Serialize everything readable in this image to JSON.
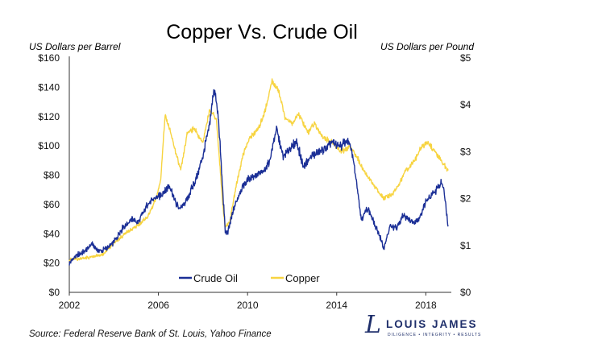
{
  "chart_data": {
    "type": "line",
    "title": "Copper Vs. Crude Oil",
    "left_axis_label": "US Dollars per Barrel",
    "right_axis_label": "US Dollars per Pound",
    "x_ticks": [
      "2002",
      "2006",
      "2010",
      "2014",
      "2018"
    ],
    "x_tick_values": [
      2002,
      2006,
      2010,
      2014,
      2018
    ],
    "xlim": [
      2002,
      2019
    ],
    "left_ticks": [
      "$0",
      "$20",
      "$40",
      "$60",
      "$80",
      "$100",
      "$120",
      "$140",
      "$160"
    ],
    "left_tick_values": [
      0,
      20,
      40,
      60,
      80,
      100,
      120,
      140,
      160
    ],
    "ylim_left": [
      0,
      160
    ],
    "right_ticks": [
      "$0",
      "$1",
      "$2",
      "$3",
      "$4",
      "$5"
    ],
    "right_tick_values": [
      0,
      1,
      2,
      3,
      4,
      5
    ],
    "ylim_right": [
      0,
      5
    ],
    "legend_position": "lower-center",
    "series": [
      {
        "name": "Crude Oil",
        "axis": "left",
        "color": "#1b2f96",
        "x": [
          2002.0,
          2002.3,
          2002.7,
          2003.0,
          2003.3,
          2003.7,
          2004.0,
          2004.4,
          2004.8,
          2005.1,
          2005.5,
          2005.8,
          2006.1,
          2006.5,
          2006.8,
          2007.0,
          2007.3,
          2007.7,
          2008.0,
          2008.3,
          2008.5,
          2008.7,
          2008.9,
          2009.0,
          2009.1,
          2009.4,
          2009.7,
          2010.0,
          2010.4,
          2010.7,
          2011.0,
          2011.3,
          2011.6,
          2011.9,
          2012.2,
          2012.5,
          2012.8,
          2013.1,
          2013.5,
          2013.8,
          2014.2,
          2014.5,
          2014.7,
          2014.9,
          2015.1,
          2015.4,
          2015.7,
          2015.9,
          2016.1,
          2016.4,
          2016.7,
          2017.0,
          2017.4,
          2017.7,
          2018.0,
          2018.4,
          2018.7,
          2018.8,
          2019.0
        ],
        "values": [
          20,
          25,
          28,
          33,
          28,
          30,
          34,
          44,
          50,
          48,
          60,
          64,
          66,
          73,
          60,
          57,
          64,
          78,
          93,
          115,
          140,
          118,
          65,
          42,
          40,
          58,
          70,
          77,
          80,
          82,
          90,
          112,
          92,
          98,
          103,
          86,
          92,
          95,
          98,
          102,
          100,
          104,
          95,
          75,
          50,
          58,
          46,
          40,
          30,
          45,
          44,
          53,
          48,
          50,
          62,
          68,
          75,
          72,
          45
        ],
        "values_note": "Crude oil in $ per barrel"
      },
      {
        "name": "Copper",
        "axis": "right",
        "color": "#f7d441",
        "x": [
          2002.0,
          2002.5,
          2003.0,
          2003.5,
          2004.0,
          2004.5,
          2005.0,
          2005.5,
          2005.9,
          2006.1,
          2006.3,
          2006.6,
          2007.0,
          2007.3,
          2007.6,
          2008.0,
          2008.3,
          2008.6,
          2008.9,
          2009.0,
          2009.2,
          2009.5,
          2009.8,
          2010.1,
          2010.5,
          2010.8,
          2011.1,
          2011.4,
          2011.7,
          2012.0,
          2012.3,
          2012.7,
          2013.0,
          2013.4,
          2013.8,
          2014.2,
          2014.6,
          2014.9,
          2015.2,
          2015.5,
          2015.8,
          2016.1,
          2016.5,
          2016.8,
          2017.1,
          2017.5,
          2017.8,
          2018.1,
          2018.4,
          2018.7,
          2019.0
        ],
        "values": [
          0.7,
          0.72,
          0.75,
          0.8,
          1.05,
          1.25,
          1.4,
          1.6,
          2.0,
          2.4,
          3.8,
          3.3,
          2.6,
          3.4,
          3.5,
          3.2,
          3.9,
          3.7,
          1.8,
          1.4,
          1.5,
          2.3,
          2.95,
          3.3,
          3.5,
          3.9,
          4.5,
          4.3,
          3.7,
          3.6,
          3.8,
          3.4,
          3.6,
          3.3,
          3.2,
          3.0,
          3.1,
          2.9,
          2.6,
          2.4,
          2.2,
          2.0,
          2.1,
          2.3,
          2.6,
          2.8,
          3.1,
          3.2,
          3.0,
          2.8,
          2.6
        ],
        "values_note": "Copper in $ per pound"
      }
    ]
  },
  "source_text": "Source: Federal Reserve Bank of St. Louis, Yahoo Finance",
  "logo": {
    "mark": "L",
    "name": "LOUIS JAMES",
    "tagline": "DILIGENCE  •  INTEGRITY  •  RESULTS"
  }
}
